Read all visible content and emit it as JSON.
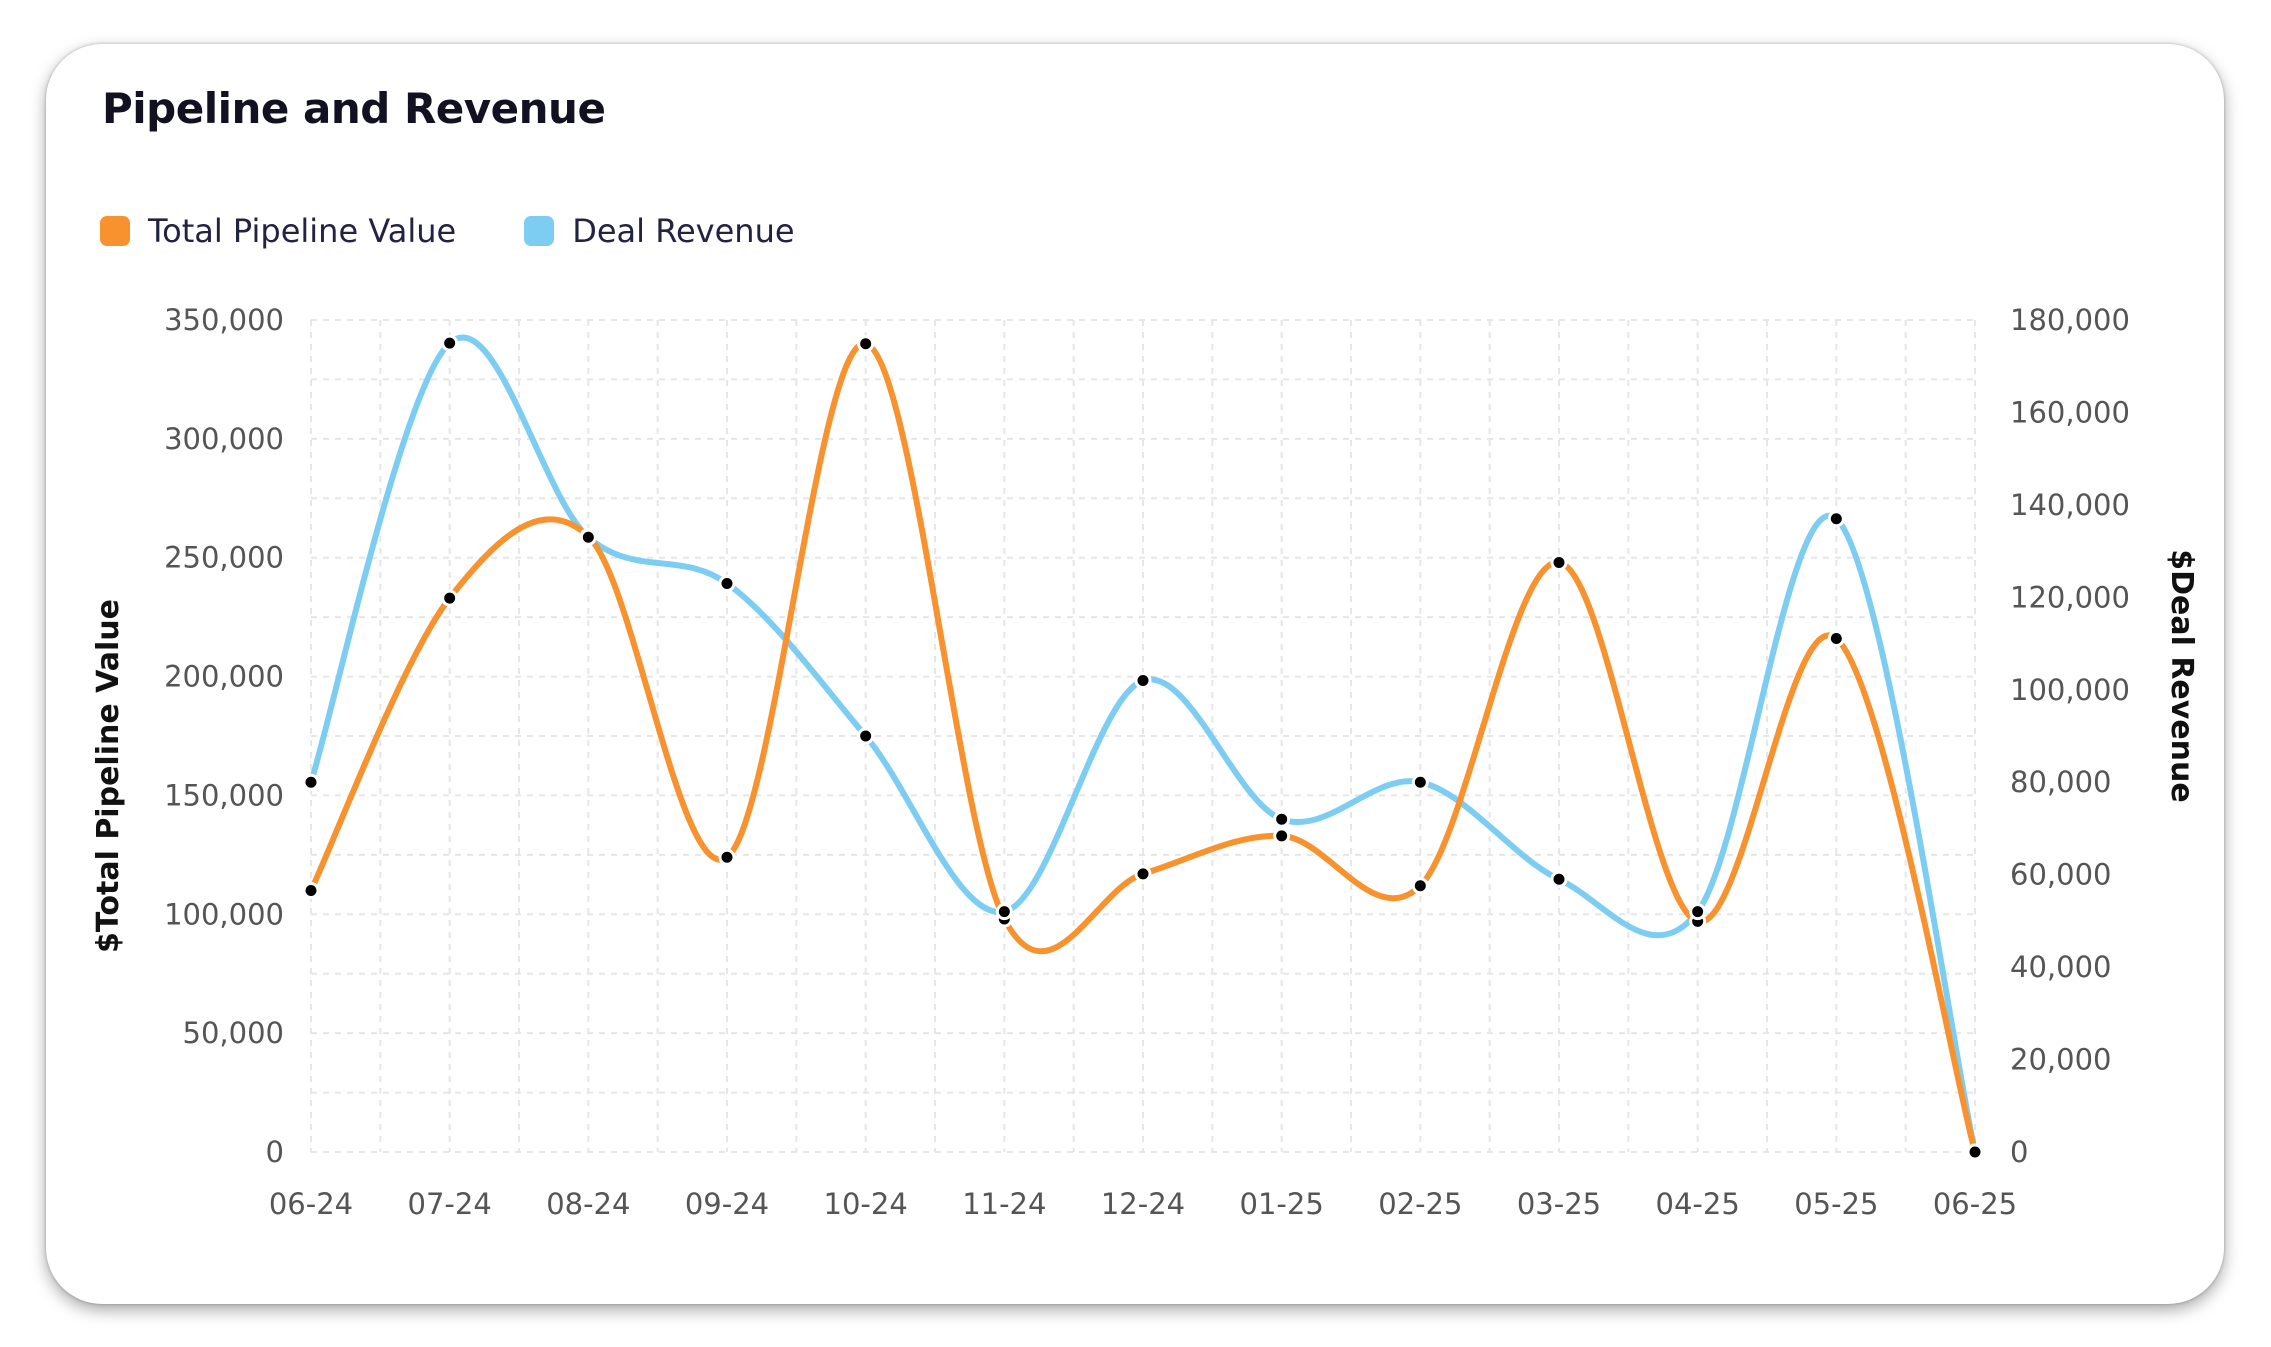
{
  "card": {
    "title": "Pipeline and Revenue"
  },
  "chart_data": {
    "type": "line",
    "title": "Pipeline and Revenue",
    "categories": [
      "06-24",
      "07-24",
      "08-24",
      "09-24",
      "10-24",
      "11-24",
      "12-24",
      "01-25",
      "02-25",
      "03-25",
      "04-25",
      "05-25",
      "06-25"
    ],
    "series": [
      {
        "name": "Total Pipeline Value",
        "axis": "left",
        "color": "#F7922E",
        "values": [
          110000,
          233000,
          259000,
          124000,
          340000,
          98000,
          117000,
          133000,
          112000,
          248000,
          97000,
          216000,
          0
        ]
      },
      {
        "name": "Deal Revenue",
        "axis": "right",
        "color": "#7DCDF3",
        "values": [
          80000,
          175000,
          133000,
          123000,
          90000,
          52000,
          102000,
          72000,
          80000,
          59000,
          52000,
          137000,
          0
        ]
      }
    ],
    "y_left": {
      "label": "$Total Pipeline Value",
      "range": [
        0,
        350000
      ],
      "ticks": [
        "350,000",
        "300,000",
        "250,000",
        "200,000",
        "150,000",
        "100,000",
        "50,000",
        "0"
      ]
    },
    "y_right": {
      "label": "$Deal Revenue",
      "range": [
        0,
        180000
      ],
      "ticks": [
        "180,000",
        "160,000",
        "140,000",
        "120,000",
        "100,000",
        "80,000",
        "60,000",
        "40,000",
        "20,000",
        "0"
      ]
    },
    "grid": true,
    "grid_style": "dashed",
    "legend_position": "top-left",
    "curve": "smooth",
    "marker_color": "#000000"
  }
}
